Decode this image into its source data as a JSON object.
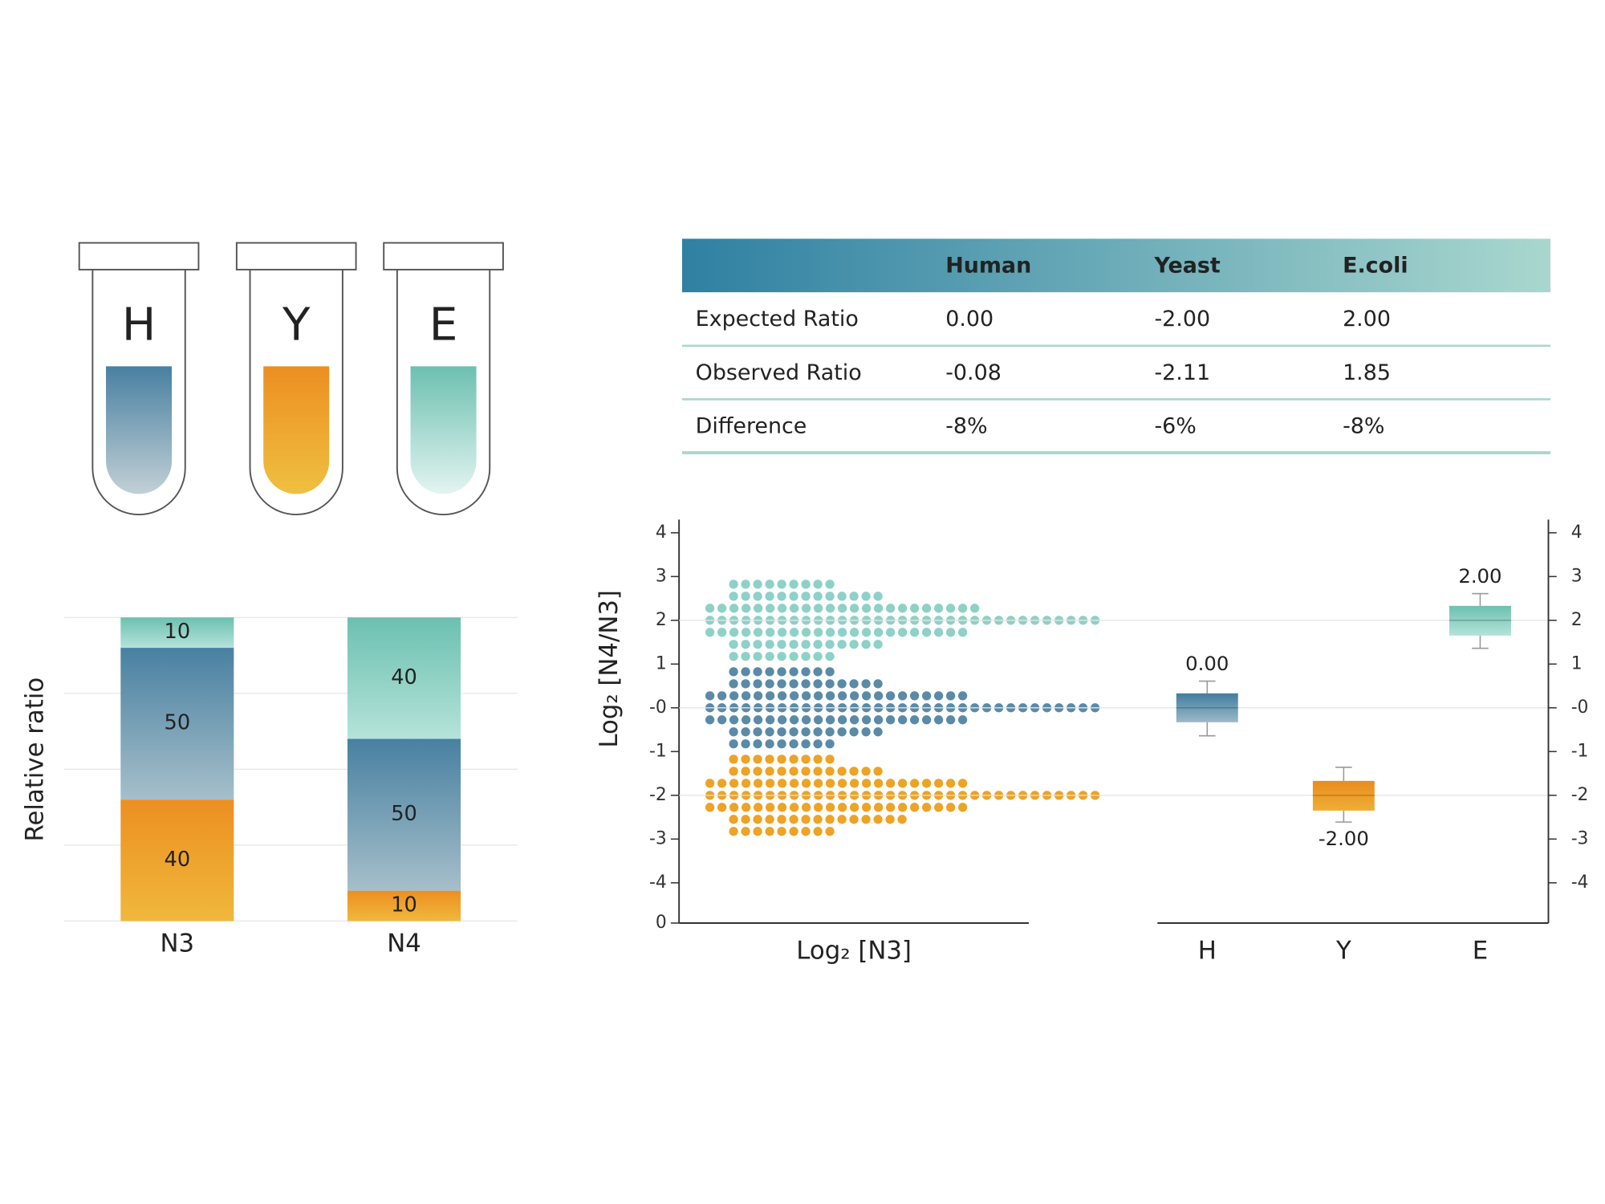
{
  "tubes": [
    {
      "label": "H"
    },
    {
      "label": "Y"
    },
    {
      "label": "E"
    }
  ],
  "table": {
    "header": [
      "Human",
      "Yeast",
      "E.coli"
    ],
    "rows": [
      [
        "Expected Ratio",
        "0.00",
        "-2.00",
        "2.00"
      ],
      [
        "Observed Ratio",
        "-0.08",
        "-2.11",
        "1.85"
      ],
      [
        "Difference",
        "-8%",
        "-6%",
        "-8%"
      ]
    ]
  },
  "chart_data": [
    {
      "type": "bar",
      "stacked": true,
      "y_label": "Relative ratio",
      "categories": [
        "N3",
        "N4"
      ],
      "series": [
        {
          "color": "#ec8f22",
          "color_end": "#f0b83c",
          "values": [
            40,
            10
          ]
        },
        {
          "color": "#4880a1",
          "color_end": "#a6bfca",
          "values": [
            50,
            50
          ]
        },
        {
          "color": "#6cc0b0",
          "color_end": "#b5e3da",
          "values": [
            10,
            40
          ]
        }
      ],
      "ylim": [
        0,
        100
      ],
      "yticks": [
        0,
        25,
        50,
        75,
        100
      ],
      "grid": true
    },
    {
      "type": "dots",
      "x_label": "Log₂ [N3]",
      "y_label": "Log₂ [N4/N3]",
      "xlim": [
        0,
        10
      ],
      "xticks": [
        0
      ],
      "ylim": [
        -4.92,
        4.3
      ],
      "yticks": [
        4,
        3,
        2,
        1,
        {
          "value": 0,
          "label": "-0"
        },
        -1,
        -2,
        -3,
        -4
      ],
      "series": [
        {
          "color": "#8ed1c6",
          "values": [
            2.825,
            2.55,
            2.275,
            2,
            1.725,
            1.45,
            1.175
          ],
          "counts": [
            9,
            13,
            23,
            33,
            22,
            13,
            9
          ]
        },
        {
          "color": "#5a8aa7",
          "values": [
            0.825,
            0.55,
            0.275,
            0,
            -0.275,
            -0.55,
            -0.825
          ],
          "counts": [
            9,
            13,
            22,
            33,
            22,
            13,
            9
          ]
        },
        {
          "color": "#eda326",
          "values": [
            -1.175,
            -1.45,
            -1.725,
            -2,
            -2.275,
            -2.55,
            -2.825
          ],
          "counts": [
            9,
            13,
            22,
            33,
            22,
            15,
            9
          ]
        }
      ]
    },
    {
      "type": "box",
      "categories": [
        "H",
        "Y",
        "E"
      ],
      "ylim": [
        -4.92,
        4.3
      ],
      "yticks": [
        4,
        3,
        2,
        1,
        {
          "value": 0,
          "label": "-0"
        },
        -1,
        -2,
        -3,
        -4
      ],
      "reference_lines": [
        2,
        0,
        -2
      ],
      "colors": [
        [
          "#3f7ea0",
          "#9cb9c6"
        ],
        [
          "#e98d1d",
          "#f0ad37"
        ],
        [
          "#6cc0b0",
          "#b5e3da"
        ]
      ],
      "medians": [
        0,
        -2,
        2
      ],
      "value_labels": [
        "0.00",
        "-2.00",
        "2.00"
      ],
      "q1": [
        -0.33,
        -2.35,
        1.65
      ],
      "q3": [
        0.33,
        -1.67,
        2.33
      ],
      "whisker_low": [
        -0.64,
        -2.61,
        1.36
      ],
      "whisker_high": [
        0.61,
        -1.36,
        2.61
      ]
    }
  ]
}
